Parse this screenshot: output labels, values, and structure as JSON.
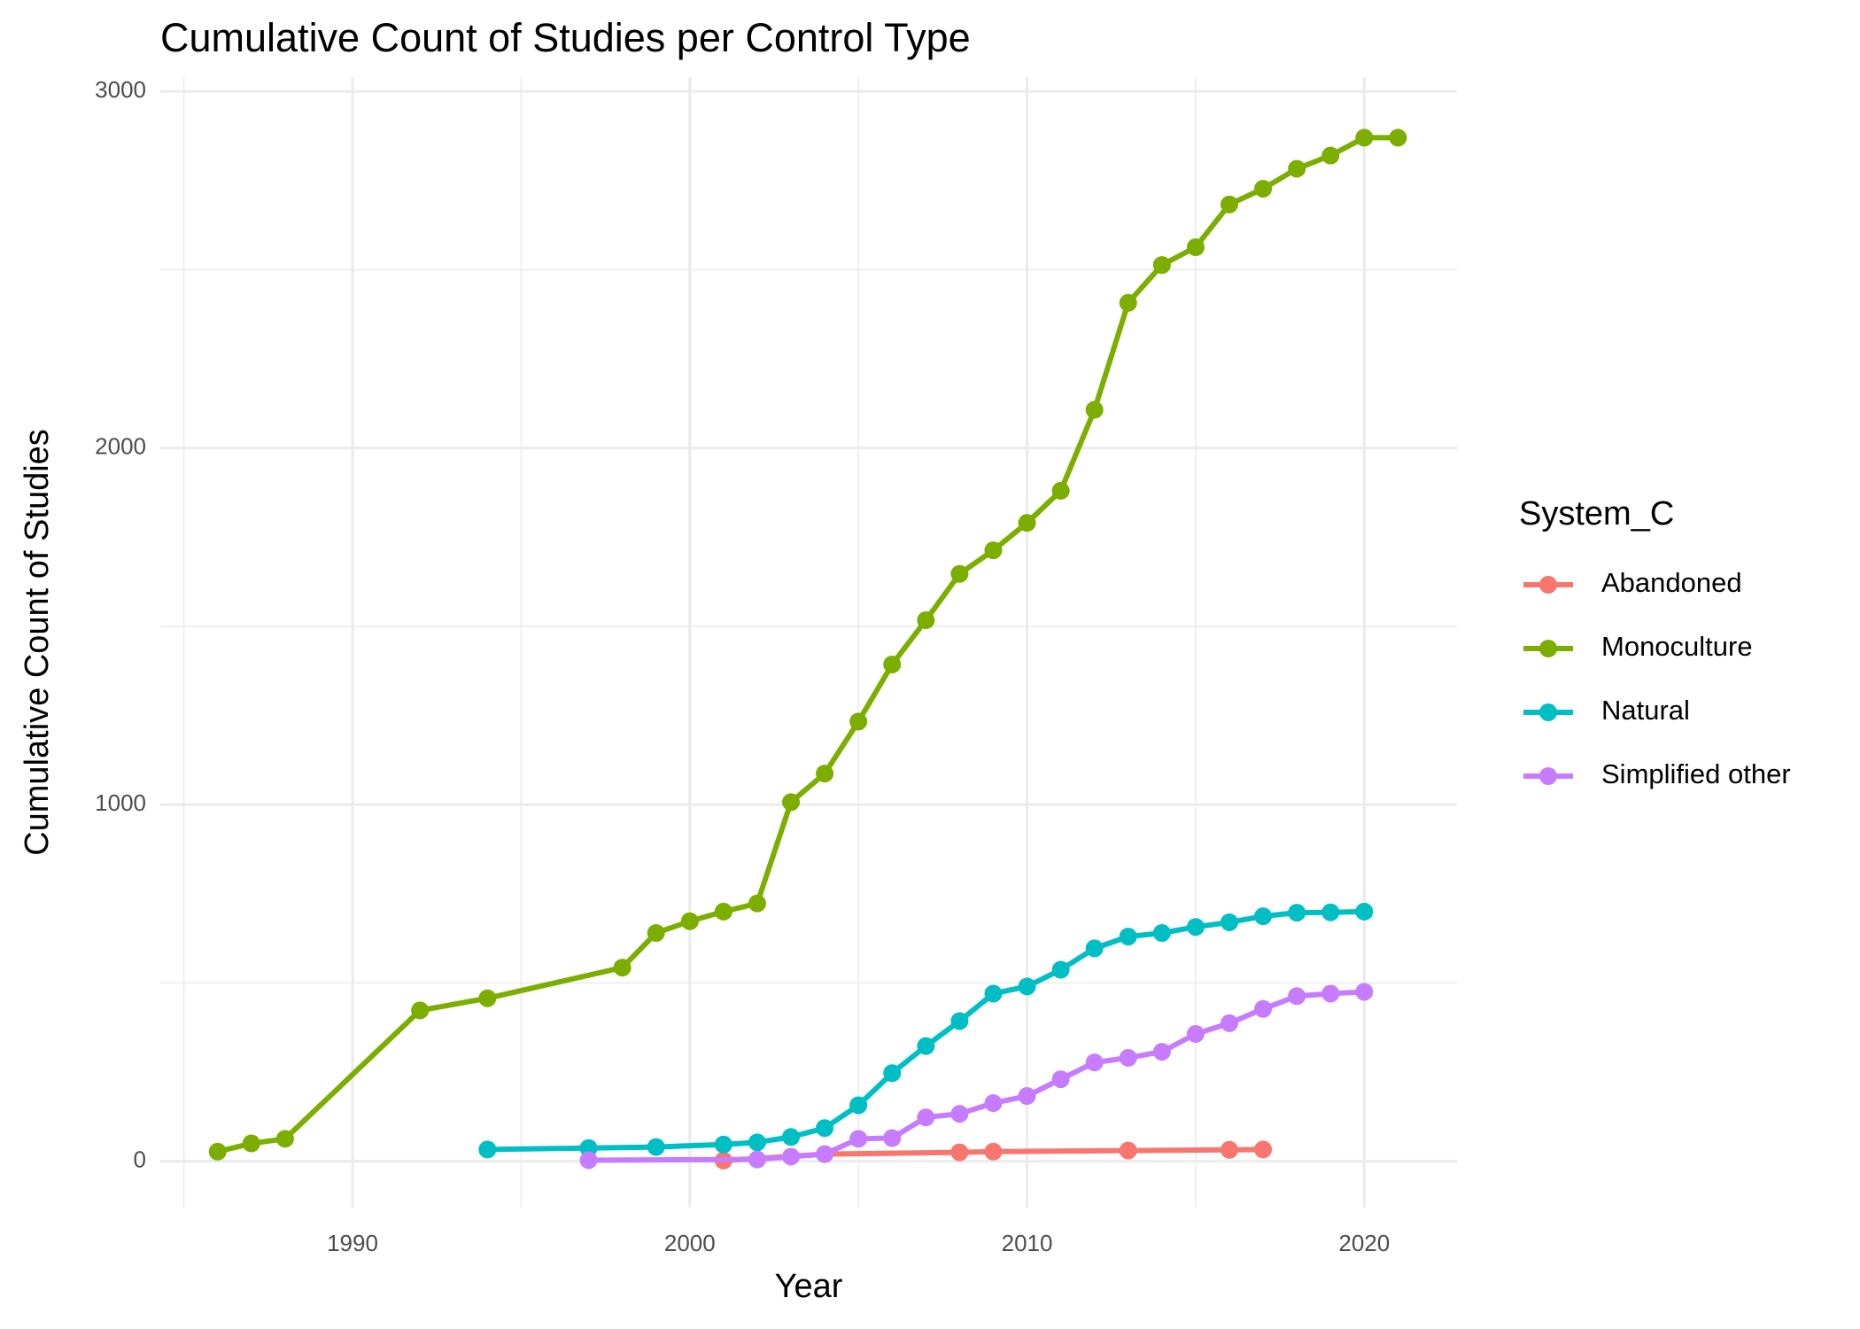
{
  "chart_data": {
    "type": "line",
    "title": "Cumulative Count of Studies per Control Type",
    "x_label": "Year",
    "y_label": "Cumulative Count of Studies",
    "legend_title": "System_C",
    "legend_position": "right",
    "xlim": [
      1984.3,
      2022.75
    ],
    "ylim": [
      -130,
      3040
    ],
    "xticks": [
      1990,
      2000,
      2010,
      2020
    ],
    "yticks": [
      0,
      1000,
      2000,
      3000
    ],
    "x_minor_ticks": [
      1985,
      1995,
      2005,
      2015
    ],
    "y_minor_ticks": [
      500,
      1500,
      2500
    ],
    "grid": true,
    "series": [
      {
        "name": "Abandoned",
        "color": "#F8766D",
        "x": [
          2001,
          2004,
          2008,
          2009,
          2013,
          2016,
          2017
        ],
        "values": [
          2,
          20,
          25,
          27,
          30,
          32,
          33
        ]
      },
      {
        "name": "Monoculture",
        "color": "#7CAE00",
        "x": [
          1986,
          1987,
          1988,
          1992,
          1994,
          1998,
          1999,
          2000,
          2001,
          2002,
          2003,
          2004,
          2005,
          2006,
          2007,
          2008,
          2009,
          2010,
          2011,
          2012,
          2013,
          2014,
          2015,
          2016,
          2017,
          2018,
          2019,
          2020,
          2021
        ],
        "values": [
          27,
          50,
          63,
          423,
          457,
          543,
          640,
          673,
          700,
          723,
          1007,
          1087,
          1233,
          1393,
          1517,
          1647,
          1713,
          1790,
          1880,
          2107,
          2407,
          2513,
          2563,
          2683,
          2727,
          2783,
          2820,
          2870,
          2870
        ]
      },
      {
        "name": "Natural",
        "color": "#00BFC4",
        "x": [
          1994,
          1997,
          1999,
          2001,
          2002,
          2003,
          2004,
          2005,
          2006,
          2007,
          2008,
          2009,
          2010,
          2011,
          2012,
          2013,
          2014,
          2015,
          2016,
          2017,
          2018,
          2019,
          2020
        ],
        "values": [
          33,
          37,
          40,
          47,
          53,
          68,
          93,
          157,
          247,
          323,
          393,
          470,
          490,
          537,
          597,
          630,
          640,
          657,
          670,
          687,
          697,
          698,
          700
        ]
      },
      {
        "name": "Simplified other",
        "color": "#C77CFF",
        "x": [
          1997,
          2002,
          2003,
          2004,
          2005,
          2006,
          2007,
          2008,
          2009,
          2010,
          2011,
          2012,
          2013,
          2014,
          2015,
          2016,
          2017,
          2018,
          2019,
          2020
        ],
        "values": [
          3,
          5,
          13,
          20,
          63,
          65,
          123,
          133,
          163,
          183,
          230,
          277,
          290,
          307,
          357,
          387,
          427,
          463,
          470,
          475
        ]
      }
    ]
  }
}
